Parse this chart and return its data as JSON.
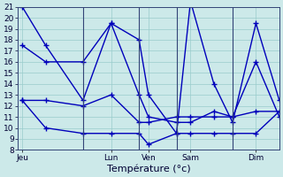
{
  "title": "",
  "xlabel": "Température (°c)",
  "ylabel": "",
  "background_color": "#cce9e9",
  "grid_color": "#99cccc",
  "line_color": "#0000bb",
  "ylim": [
    8,
    21
  ],
  "yticks": [
    8,
    9,
    10,
    11,
    12,
    13,
    14,
    15,
    16,
    17,
    18,
    19,
    20,
    21
  ],
  "xlim": [
    0,
    28
  ],
  "day_ticks": [
    0.5,
    10,
    14,
    18.5,
    25.5
  ],
  "day_labels": [
    "Jeu",
    "Lun",
    "Ven",
    "Sam",
    "Dim"
  ],
  "day_separators": [
    7,
    13,
    17,
    23
  ],
  "series1": {
    "x": [
      0.5,
      3,
      7,
      10,
      13,
      14,
      17,
      18.5,
      21,
      23,
      25.5,
      28
    ],
    "y": [
      21,
      17.5,
      12.5,
      19.5,
      18,
      13,
      9.5,
      21.5,
      14,
      10.5,
      19.5,
      12.5
    ]
  },
  "series2": {
    "x": [
      0.5,
      3,
      7,
      10,
      13,
      14,
      17,
      18.5,
      21,
      23,
      25.5,
      28
    ],
    "y": [
      17.5,
      16,
      16,
      19.5,
      13,
      11,
      10.5,
      10.5,
      11.5,
      11,
      16,
      11
    ]
  },
  "series3": {
    "x": [
      0.5,
      3,
      7,
      10,
      13,
      14,
      17,
      18.5,
      21,
      23,
      25.5,
      28
    ],
    "y": [
      12.5,
      12.5,
      12,
      13,
      10.5,
      10.5,
      11,
      11,
      11,
      11,
      11.5,
      11.5
    ]
  },
  "series4": {
    "x": [
      0.5,
      3,
      7,
      10,
      13,
      14,
      17,
      18.5,
      21,
      23,
      25.5,
      28
    ],
    "y": [
      12.5,
      10,
      9.5,
      9.5,
      9.5,
      8.5,
      9.5,
      9.5,
      9.5,
      9.5,
      9.5,
      11.5
    ]
  },
  "tick_fontsize": 6.5,
  "label_fontsize": 8
}
